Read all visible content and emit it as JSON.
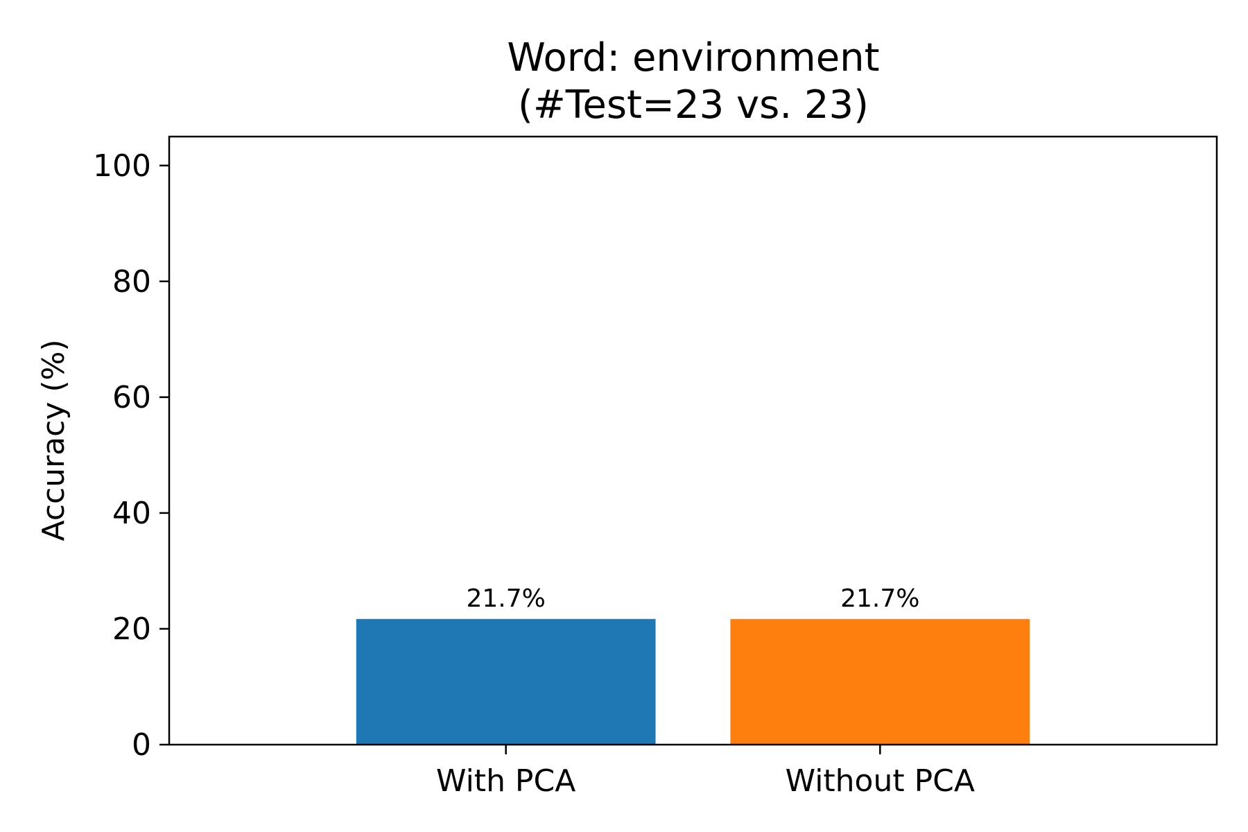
{
  "chart_data": {
    "type": "bar",
    "title": "Word: environment\n(#Test=23 vs. 23)",
    "title_lines": [
      "Word: environment",
      "(#Test=23 vs. 23)"
    ],
    "categories": [
      "With PCA",
      "Without PCA"
    ],
    "values": [
      21.7,
      21.7
    ],
    "data_labels": [
      "21.7%",
      "21.7%"
    ],
    "colors": [
      "#1f77b4",
      "#ff7f0e"
    ],
    "xlabel": "",
    "ylabel": "Accuracy (%)",
    "ylim": [
      0,
      105
    ],
    "yticks": [
      0,
      20,
      40,
      60,
      80,
      100
    ],
    "grid": false,
    "legend": "none"
  }
}
